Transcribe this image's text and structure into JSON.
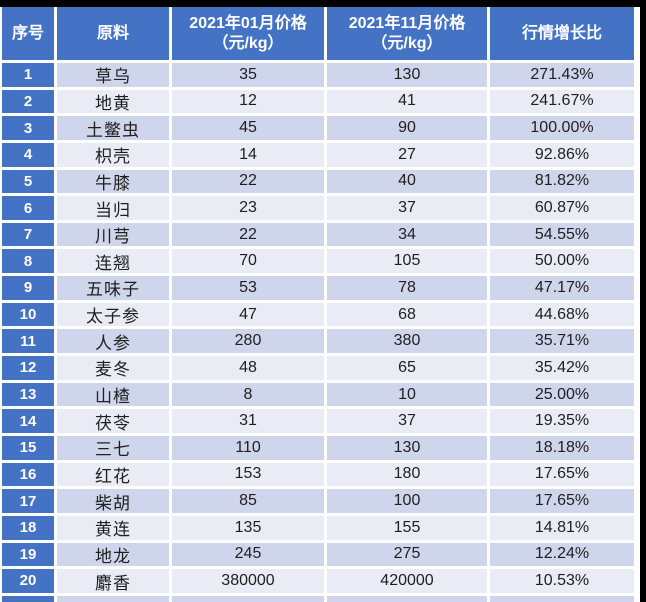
{
  "colors": {
    "header_bg": "#4472C4",
    "index_column_bg": "#4472C4",
    "band_odd": "#CFD5EA",
    "band_even": "#E9EBF5",
    "grid_line": "#FFFFFF",
    "frame_border": "#000000",
    "header_text": "#FFFFFF",
    "body_text": "#1F1F1F"
  },
  "chart_data": {
    "type": "table",
    "title": "",
    "header_labels": [
      "序号",
      "原料",
      "2021年01月价格\n（元/kg）",
      "2021年11月价格\n（元/kg）",
      "行情增长比"
    ],
    "partial_row_visible": true,
    "rows": [
      {
        "index": "1",
        "material": "草乌",
        "price_jan": "35",
        "price_nov": "130",
        "growth": "271.43%"
      },
      {
        "index": "2",
        "material": "地黄",
        "price_jan": "12",
        "price_nov": "41",
        "growth": "241.67%"
      },
      {
        "index": "3",
        "material": "土鳖虫",
        "price_jan": "45",
        "price_nov": "90",
        "growth": "100.00%"
      },
      {
        "index": "4",
        "material": "枳壳",
        "price_jan": "14",
        "price_nov": "27",
        "growth": "92.86%"
      },
      {
        "index": "5",
        "material": "牛膝",
        "price_jan": "22",
        "price_nov": "40",
        "growth": "81.82%"
      },
      {
        "index": "6",
        "material": "当归",
        "price_jan": "23",
        "price_nov": "37",
        "growth": "60.87%"
      },
      {
        "index": "7",
        "material": "川芎",
        "price_jan": "22",
        "price_nov": "34",
        "growth": "54.55%"
      },
      {
        "index": "8",
        "material": "连翘",
        "price_jan": "70",
        "price_nov": "105",
        "growth": "50.00%"
      },
      {
        "index": "9",
        "material": "五味子",
        "price_jan": "53",
        "price_nov": "78",
        "growth": "47.17%"
      },
      {
        "index": "10",
        "material": "太子参",
        "price_jan": "47",
        "price_nov": "68",
        "growth": "44.68%"
      },
      {
        "index": "11",
        "material": "人参",
        "price_jan": "280",
        "price_nov": "380",
        "growth": "35.71%"
      },
      {
        "index": "12",
        "material": "麦冬",
        "price_jan": "48",
        "price_nov": "65",
        "growth": "35.42%"
      },
      {
        "index": "13",
        "material": "山楂",
        "price_jan": "8",
        "price_nov": "10",
        "growth": "25.00%"
      },
      {
        "index": "14",
        "material": "茯苓",
        "price_jan": "31",
        "price_nov": "37",
        "growth": "19.35%"
      },
      {
        "index": "15",
        "material": "三七",
        "price_jan": "110",
        "price_nov": "130",
        "growth": "18.18%"
      },
      {
        "index": "16",
        "material": "红花",
        "price_jan": "153",
        "price_nov": "180",
        "growth": "17.65%"
      },
      {
        "index": "17",
        "material": "柴胡",
        "price_jan": "85",
        "price_nov": "100",
        "growth": "17.65%"
      },
      {
        "index": "18",
        "material": "黄连",
        "price_jan": "135",
        "price_nov": "155",
        "growth": "14.81%"
      },
      {
        "index": "19",
        "material": "地龙",
        "price_jan": "245",
        "price_nov": "275",
        "growth": "12.24%"
      },
      {
        "index": "20",
        "material": "麝香",
        "price_jan": "380000",
        "price_nov": "420000",
        "growth": "10.53%"
      }
    ]
  }
}
